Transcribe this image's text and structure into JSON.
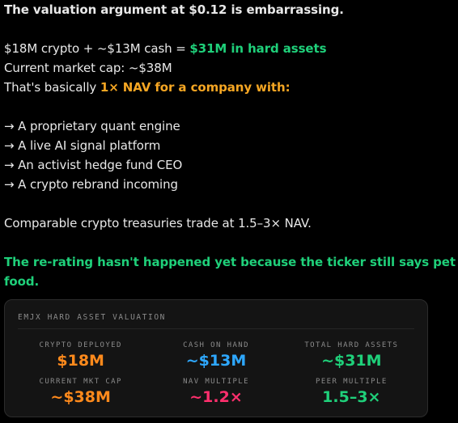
{
  "post": {
    "headline": "The valuation argument at $0.12 is embarrassing.",
    "assets_prefix": "$18M crypto + ~$13M cash = ",
    "assets_highlight": "$31M in hard assets",
    "market_cap": "Current market cap: ~$38M",
    "nav_prefix": "That's basically ",
    "nav_highlight": "1× NAV for a company with:",
    "bullets": [
      "→ A proprietary quant engine",
      "→ A live AI signal platform",
      "→ An activist hedge fund CEO",
      "→ A crypto rebrand incoming"
    ],
    "comparable": "Comparable crypto treasuries trade at 1.5–3× NAV.",
    "closing_line1": "The re-rating hasn't happened yet because the ticker still says pet",
    "closing_line2": "food."
  },
  "card": {
    "title": "EMJX HARD ASSET VALUATION",
    "metrics": [
      {
        "label": "CRYPTO DEPLOYED",
        "value": "$18M",
        "color": "#ff8a1c"
      },
      {
        "label": "CASH ON HAND",
        "value": "~$13M",
        "color": "#2ea8ff"
      },
      {
        "label": "TOTAL HARD ASSETS",
        "value": "~$31M",
        "color": "#1fd07a"
      },
      {
        "label": "CURRENT MKT CAP",
        "value": "~$38M",
        "color": "#ff8a1c"
      },
      {
        "label": "NAV MULTIPLE",
        "value": "~1.2×",
        "color": "#ff2f6d"
      },
      {
        "label": "PEER MULTIPLE",
        "value": "1.5–3×",
        "color": "#1fd07a"
      }
    ]
  },
  "colors": {
    "background": "#000000",
    "text": "#e8e8e8",
    "green_accent": "#1fd07a",
    "orange_accent": "#f5a623"
  }
}
